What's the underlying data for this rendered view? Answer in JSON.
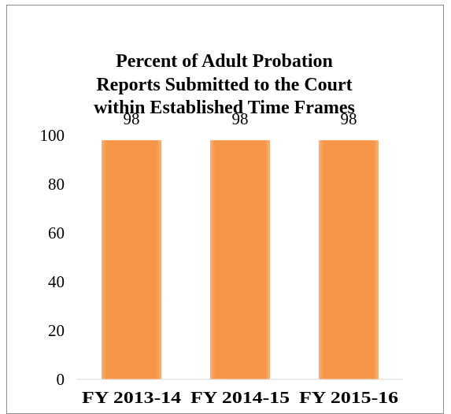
{
  "chart_data": {
    "type": "bar",
    "title_lines": [
      "Percent of Adult Probation",
      "Reports Submitted to the Court",
      "within Established Time Frames"
    ],
    "categories": [
      "FY 2013-14",
      "FY 2014-15",
      "FY 2015-16"
    ],
    "values": [
      98,
      98,
      98
    ],
    "data_labels": [
      "98",
      "98",
      "98"
    ],
    "y_ticks": [
      "0",
      "20",
      "40",
      "60",
      "80",
      "100"
    ],
    "ylim": [
      0,
      100
    ],
    "xlabel": "",
    "ylabel": "",
    "grid": false,
    "bar_color": "#f79646",
    "bar_highlight": "#f9b27a"
  }
}
